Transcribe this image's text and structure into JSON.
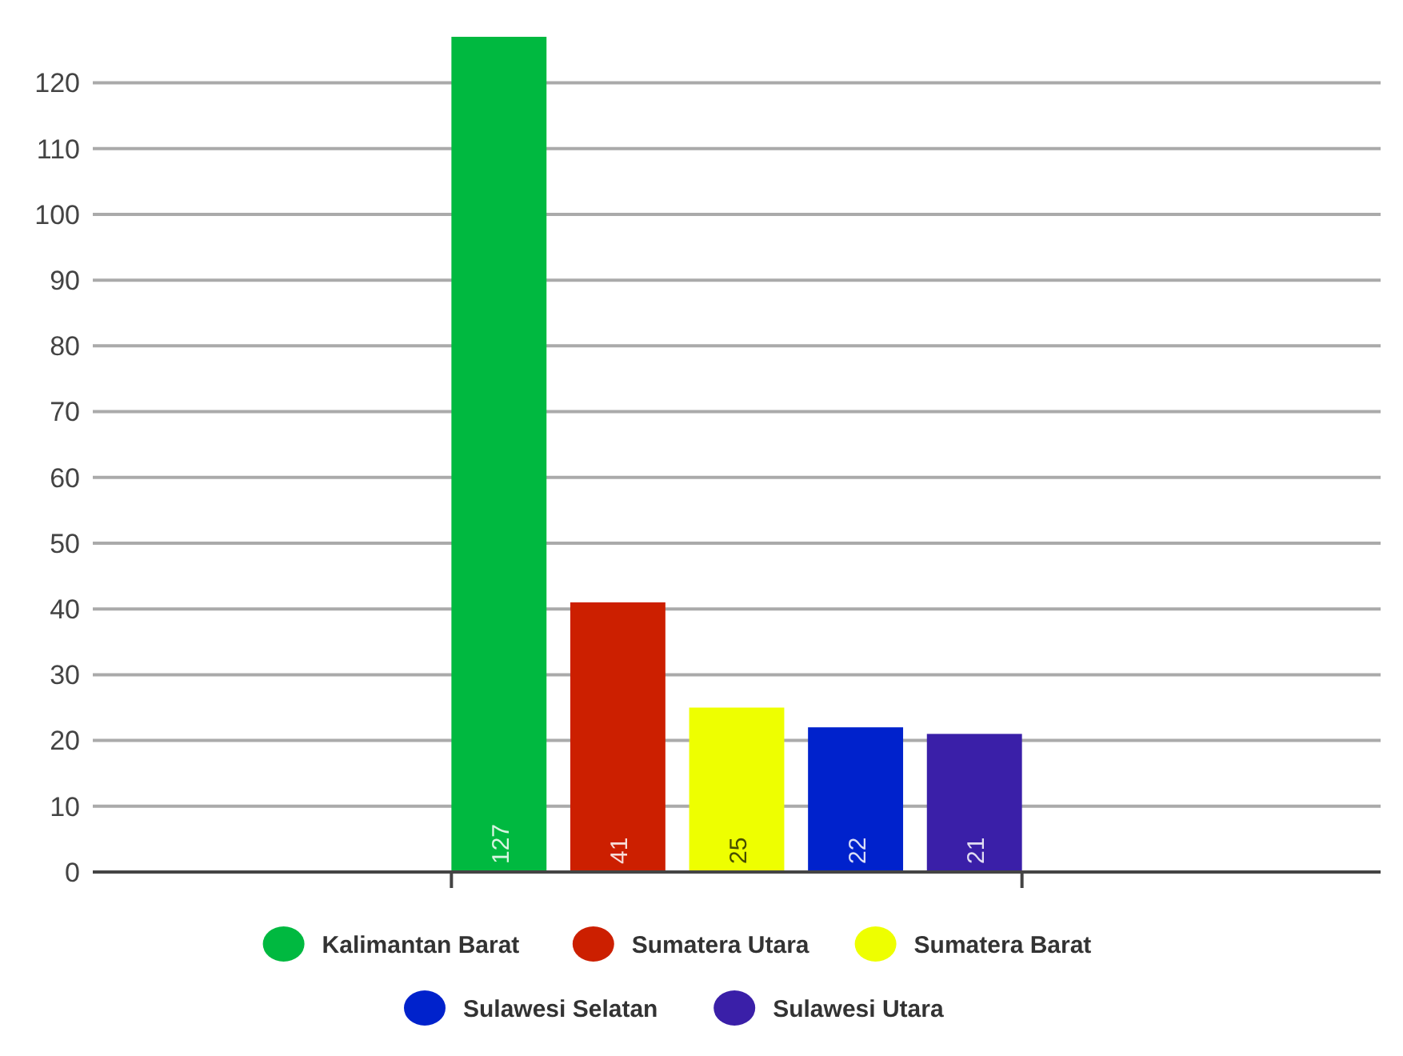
{
  "chart_data": {
    "type": "bar",
    "categories": [
      null
    ],
    "series": [
      {
        "name": "Kalimantan Barat",
        "color": "#00b940",
        "values": [
          127
        ]
      },
      {
        "name": "Sumatera Utara",
        "color": "#cc1f00",
        "values": [
          41
        ]
      },
      {
        "name": "Sumatera Barat",
        "color": "#eeff00",
        "values": [
          25
        ]
      },
      {
        "name": "Sulawesi Selatan",
        "color": "#0022cc",
        "values": [
          22
        ]
      },
      {
        "name": "Sulawesi Utara",
        "color": "#3a1fa8",
        "values": [
          21
        ]
      }
    ],
    "ylim": [
      0,
      127
    ],
    "yticks": [
      0,
      10,
      20,
      30,
      40,
      50,
      60,
      70,
      80,
      90,
      100,
      110,
      120
    ],
    "grid": "y",
    "legend": "bottom",
    "data_labels": true,
    "tick_labels": "y"
  }
}
